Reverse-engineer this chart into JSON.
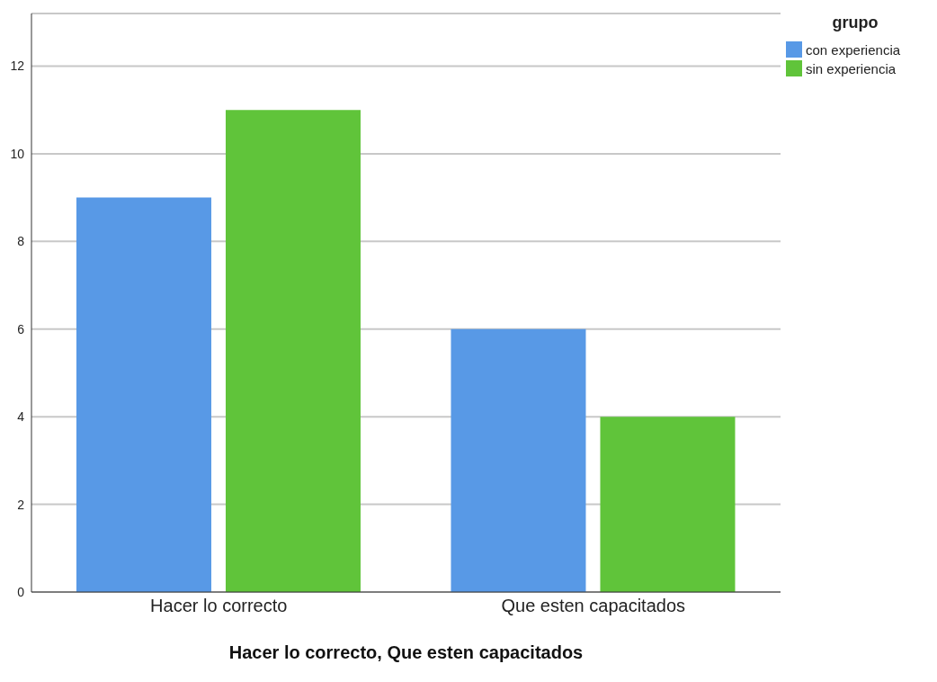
{
  "chart_data": {
    "type": "bar",
    "xlabel": "Hacer lo correcto, Que esten capacitados",
    "legend_title": "grupo",
    "categories": [
      "Hacer lo correcto",
      "Que esten capacitados"
    ],
    "series": [
      {
        "name": "con experiencia",
        "color": "#5899e6",
        "values": [
          9,
          6
        ]
      },
      {
        "name": "sin experiencia",
        "color": "#60c43a",
        "values": [
          11,
          4
        ]
      }
    ],
    "ylim": [
      0,
      13.2
    ],
    "yticks": [
      0,
      2,
      4,
      6,
      8,
      10,
      12
    ],
    "grid": "y",
    "legend": "top right"
  }
}
